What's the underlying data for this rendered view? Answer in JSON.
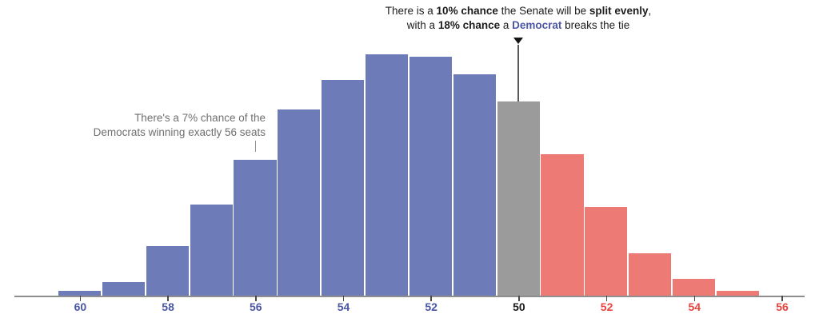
{
  "chart_data": {
    "type": "bar",
    "description": "Histogram of Senate seat outcome probabilities",
    "categories": [
      "60 Dem",
      "59 Dem",
      "58 Dem",
      "57 Dem",
      "56 Dem",
      "55 Dem",
      "54 Dem",
      "53 Dem",
      "52 Dem",
      "51 Dem",
      "50-50 split",
      "51 Rep",
      "52 Rep",
      "53 Rep",
      "54 Rep",
      "55 Rep"
    ],
    "values": [
      0.3,
      0.75,
      2.6,
      4.7,
      7,
      9.6,
      11.1,
      12.4,
      12.3,
      11.4,
      10,
      7.3,
      4.6,
      2.2,
      0.9,
      0.3
    ],
    "unit": "percent chance",
    "parties": [
      "dem",
      "dem",
      "dem",
      "dem",
      "dem",
      "dem",
      "dem",
      "dem",
      "dem",
      "dem",
      "tie",
      "rep",
      "rep",
      "rep",
      "rep",
      "rep"
    ],
    "xlabel": "",
    "ylabel": "",
    "grid": false,
    "legend": false,
    "x_ticks": [
      {
        "index": 0,
        "label": "60",
        "party": "dem"
      },
      {
        "index": 2,
        "label": "58",
        "party": "dem"
      },
      {
        "index": 4,
        "label": "56",
        "party": "dem"
      },
      {
        "index": 6,
        "label": "54",
        "party": "dem"
      },
      {
        "index": 8,
        "label": "52",
        "party": "dem"
      },
      {
        "index": 10,
        "label": "50",
        "party": "tie"
      },
      {
        "index": 12,
        "label": "52",
        "party": "rep"
      },
      {
        "index": 14,
        "label": "54",
        "party": "rep"
      },
      {
        "index": 16,
        "label": "56",
        "party": "rep"
      }
    ]
  },
  "annotations": {
    "split": {
      "line1": [
        {
          "text": "There is a ",
          "style": "normal"
        },
        {
          "text": "10% chance",
          "style": "bold"
        },
        {
          "text": " the Senate will be ",
          "style": "normal"
        },
        {
          "text": "split evenly",
          "style": "bold"
        },
        {
          "text": ",",
          "style": "normal"
        }
      ],
      "line2": [
        {
          "text": "with a ",
          "style": "normal"
        },
        {
          "text": "18% chance",
          "style": "bold"
        },
        {
          "text": " a ",
          "style": "normal"
        },
        {
          "text": "Democrat",
          "style": "bold-dem"
        },
        {
          "text": " breaks the tie",
          "style": "normal"
        }
      ]
    },
    "dem56": {
      "line1": "There's a 7% chance of the",
      "line2": "Democrats winning exactly 56 seats"
    }
  },
  "colors": {
    "dem_bar": "#6d7cb9",
    "rep_bar": "#ee7a76",
    "tie_bar": "#9b9b9b",
    "dem_label": "#4a55a5",
    "rep_label": "#e8433c",
    "tie_label": "#1a1a1a",
    "annotation_text": "#1c1c1c",
    "annotation_muted": "#6f6f6f",
    "axis": "#8e8e8e"
  }
}
